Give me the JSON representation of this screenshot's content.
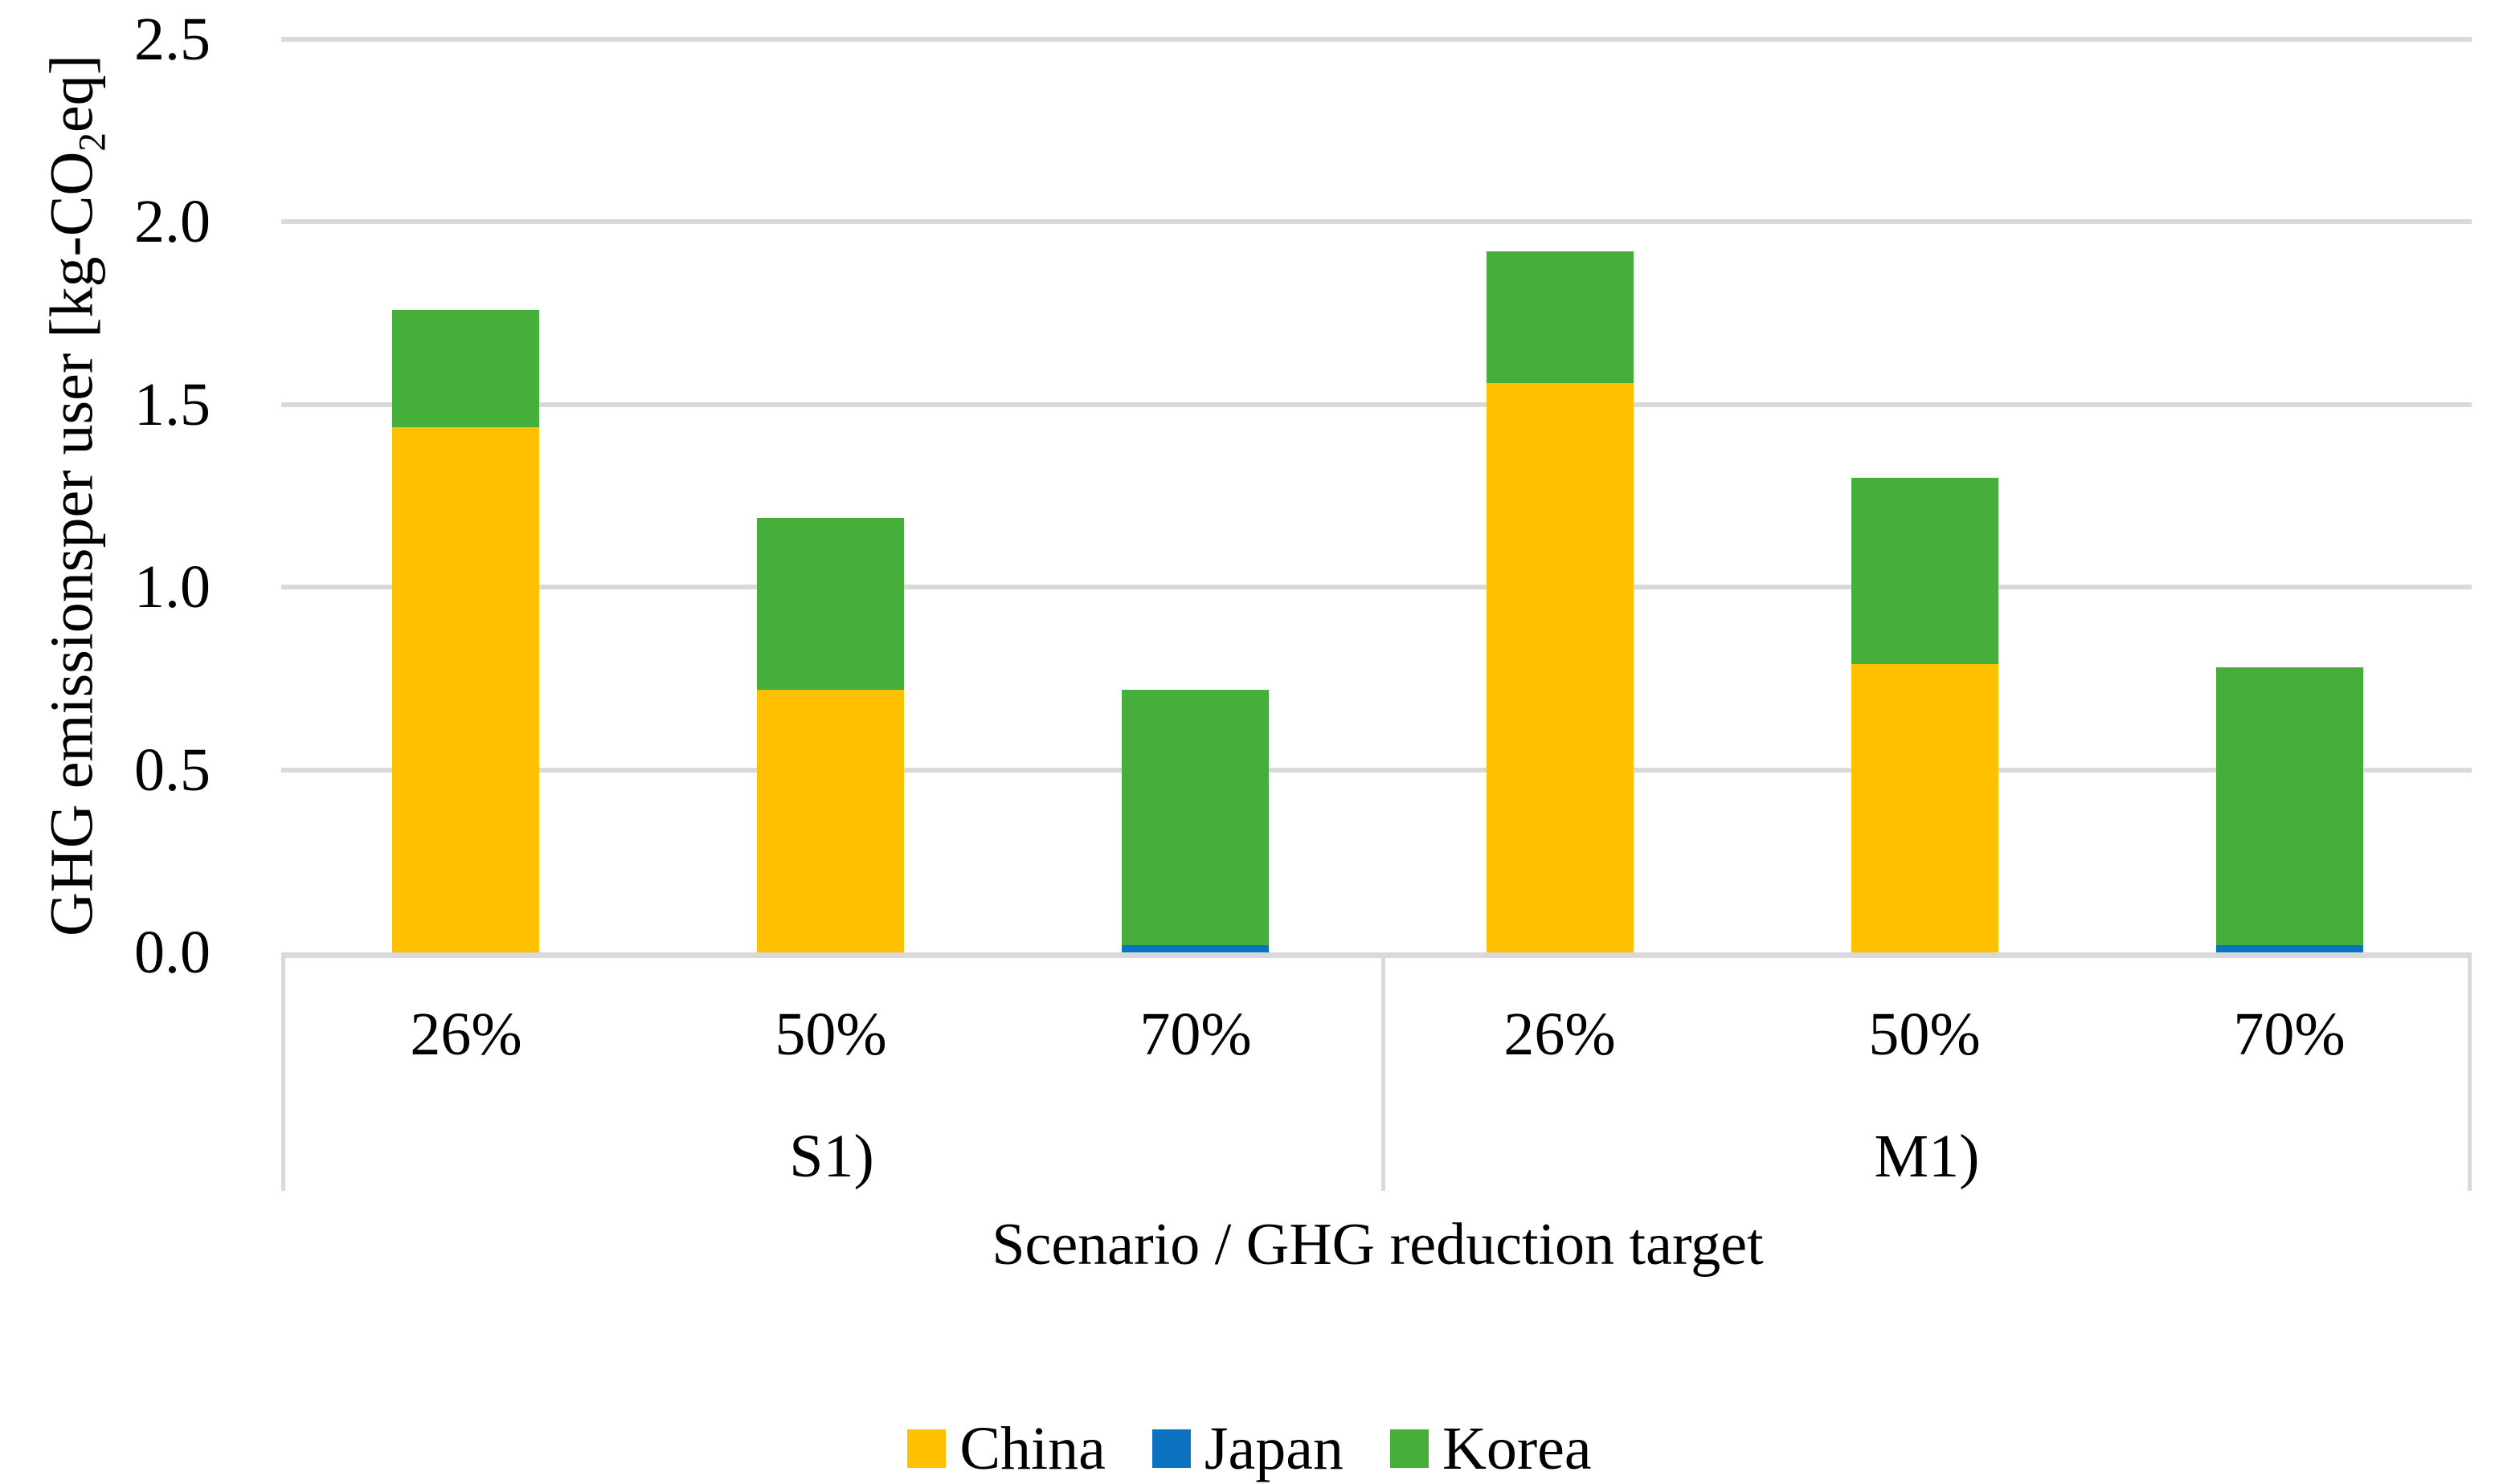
{
  "chart_data": {
    "type": "bar",
    "stacked": true,
    "ylabel_pre": "GHG emissionsper user [kg-CO",
    "ylabel_sub": "2",
    "ylabel_post": "eq]",
    "xlabel": "Scenario / GHG reduction target",
    "ylim": [
      0,
      2.5
    ],
    "ytick_step": 0.5,
    "ytick_labels": [
      "0.0",
      "0.5",
      "1.0",
      "1.5",
      "2.0",
      "2.5"
    ],
    "groups": [
      {
        "label": "S1)",
        "categories": [
          "26%",
          "50%",
          "70%"
        ]
      },
      {
        "label": "M1)",
        "categories": [
          "26%",
          "50%",
          "70%"
        ]
      }
    ],
    "series": [
      {
        "name": "China",
        "color": "#FFC000",
        "values": [
          1.44,
          0.72,
          0.0,
          1.56,
          0.79,
          0.0
        ]
      },
      {
        "name": "Japan",
        "color": "#0B72C0",
        "values": [
          0.0,
          0.0,
          0.02,
          0.0,
          0.0,
          0.02
        ]
      },
      {
        "name": "Korea",
        "color": "#46AF3C",
        "values": [
          0.32,
          0.47,
          0.7,
          0.36,
          0.51,
          0.76
        ]
      }
    ],
    "stack_totals": [
      1.76,
      1.19,
      0.72,
      1.92,
      1.3,
      0.78
    ],
    "legend_position": "bottom",
    "grid": true,
    "gridline_color": "#D9D9D9",
    "text_color": "#000000"
  }
}
